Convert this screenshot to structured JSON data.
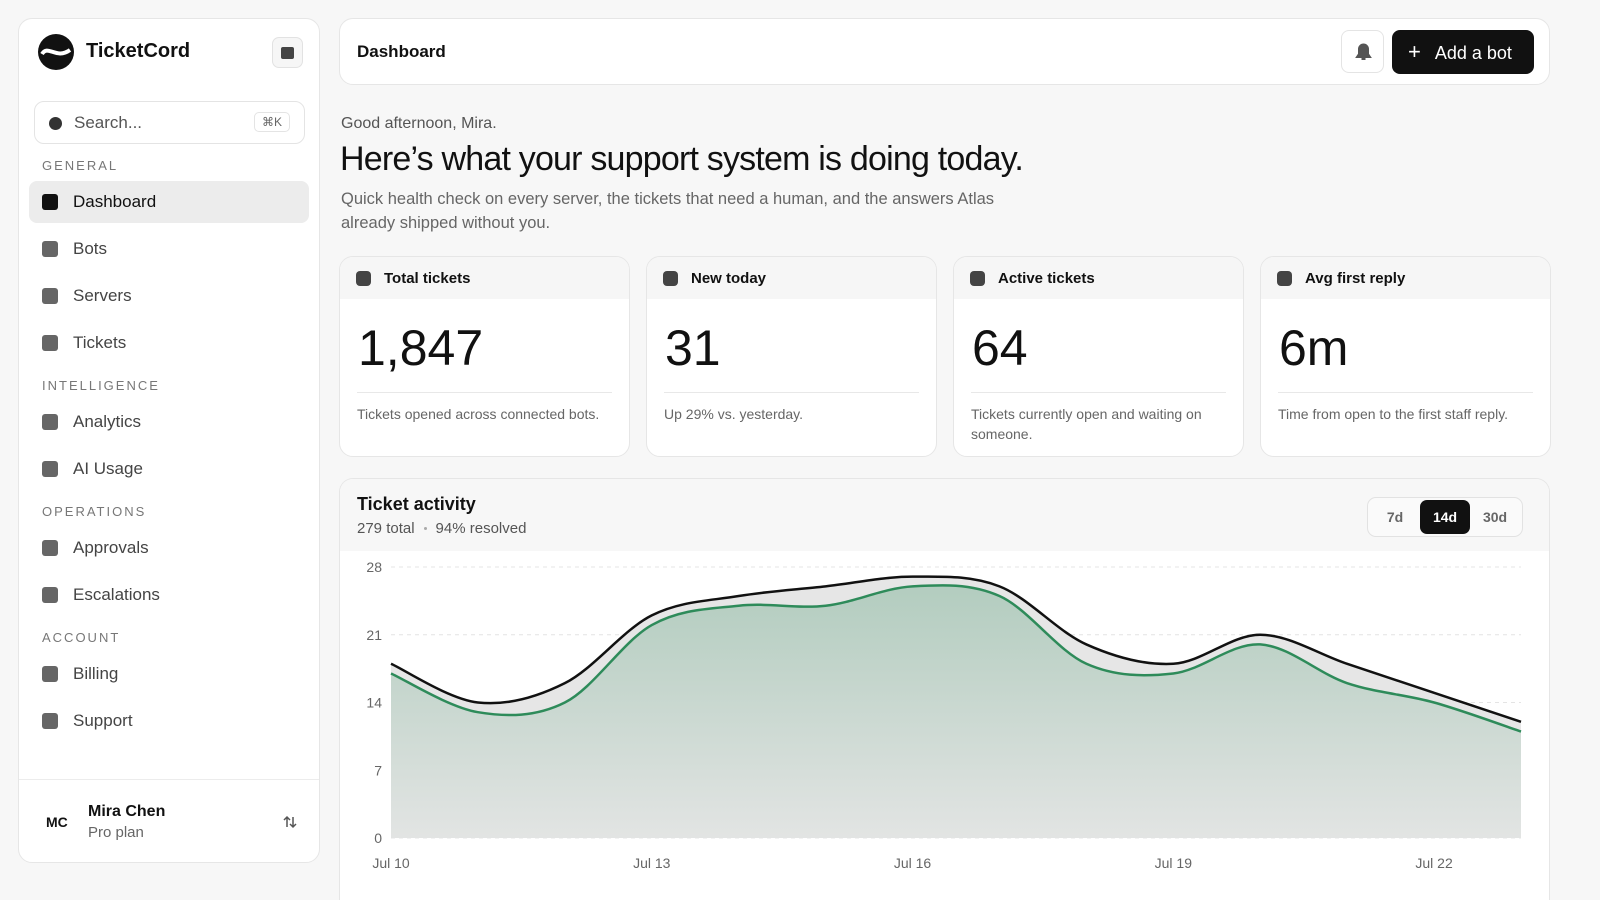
{
  "sidebar": {
    "brand": "TicketCord",
    "search_placeholder": "Search...",
    "shortcut": "⌘K",
    "sections": [
      {
        "title": "GENERAL",
        "items": [
          {
            "label": "Dashboard",
            "active": true
          },
          {
            "label": "Bots"
          },
          {
            "label": "Servers"
          },
          {
            "label": "Tickets"
          }
        ]
      },
      {
        "title": "INTELLIGENCE",
        "items": [
          {
            "label": "Analytics"
          },
          {
            "label": "AI Usage"
          }
        ]
      },
      {
        "title": "OPERATIONS",
        "items": [
          {
            "label": "Approvals"
          },
          {
            "label": "Escalations"
          }
        ]
      },
      {
        "title": "ACCOUNT",
        "items": [
          {
            "label": "Billing"
          },
          {
            "label": "Support"
          }
        ]
      }
    ],
    "user": {
      "initials": "MC",
      "name": "Mira Chen",
      "plan": "Pro plan"
    }
  },
  "header": {
    "title": "Dashboard",
    "button": "Add a bot"
  },
  "hero": {
    "greeting": "Good afternoon, Mira.",
    "headline": "Here’s what your support system is doing today.",
    "description": "Quick health check on every server, the tickets that need a human, and the answers Atlas already shipped without you."
  },
  "stats": [
    {
      "label": "Total tickets",
      "value": "1,847",
      "note": "Tickets opened across connected bots."
    },
    {
      "label": "New today",
      "value": "31",
      "note": "Up 29% vs. yesterday."
    },
    {
      "label": "Active tickets",
      "value": "64",
      "note": "Tickets currently open and waiting on someone."
    },
    {
      "label": "Avg first reply",
      "value": "6m",
      "note": "Time from open to the first staff reply."
    }
  ],
  "activity": {
    "total": "279 total",
    "resolved": "94% resolved",
    "ranges": [
      {
        "label": "7d"
      },
      {
        "label": "14d",
        "selected": true
      },
      {
        "label": "30d"
      }
    ]
  },
  "chart_data": {
    "type": "area",
    "title": "Ticket activity",
    "categories": [
      "Jul 10",
      null,
      null,
      "Jul 13",
      null,
      null,
      "Jul 16",
      null,
      null,
      "Jul 19",
      null,
      null,
      "Jul 22",
      null
    ],
    "series": [
      {
        "color": "#111111",
        "values": [
          18,
          14,
          16,
          23,
          25,
          26,
          27,
          26,
          20,
          18,
          21,
          18,
          15,
          12
        ]
      },
      {
        "color": "#2e8b5a",
        "values": [
          17,
          13,
          14,
          22,
          24,
          24,
          26,
          25,
          18,
          17,
          20,
          16,
          14,
          11
        ]
      }
    ],
    "ylim": [
      0,
      28
    ],
    "yticks": [
      0,
      7,
      14,
      21,
      28
    ],
    "grid": true
  }
}
